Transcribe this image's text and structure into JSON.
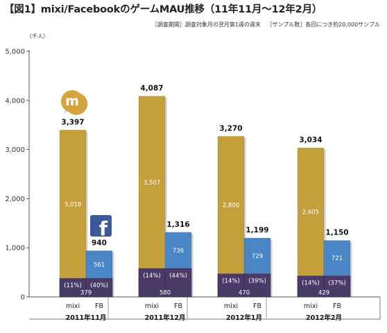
{
  "title": "【図1】mixi/FacebookのゲームMAU推移（11年11月～12年2月）",
  "survey_period": "［調査期間］調査対象月の翌月第1週の週末",
  "sample_size": "［サンプル数］各回につき約20,000サンプル",
  "unit_label": "（千人）",
  "colors": {
    "mixi_top": "#c4a03c",
    "fb_top": "#4a86c5",
    "base": "#4a3a68",
    "mixi_logo": "#d5a43e",
    "fb_logo": "#3b5998"
  },
  "icons": [
    "mixi-logo-icon",
    "facebook-logo-icon"
  ],
  "chart_data": {
    "type": "bar",
    "stacked": true,
    "title": "mixi/FacebookのゲームMAU推移（11年11月～12年2月）",
    "ylabel": "（千人）",
    "ylim": [
      0,
      5000
    ],
    "yticks": [
      "0",
      "1,000",
      "2,000",
      "3,000",
      "4,000",
      "5,000"
    ],
    "grid": false,
    "periods": [
      "2011年11月",
      "2011年12月",
      "2012年1月",
      "2012年2月"
    ],
    "platforms": [
      "mixi",
      "FB"
    ],
    "groups": [
      {
        "period": "2011年11月",
        "bars": [
          {
            "platform": "mixi",
            "base": 379,
            "top": 3018,
            "total": 3397,
            "total_label": "3,397",
            "base_label": "379",
            "top_label": "3,018",
            "share": "(11%)"
          },
          {
            "platform": "FB",
            "base": 379,
            "top": 561,
            "total": 940,
            "total_label": "940",
            "base_label": "",
            "top_label": "561",
            "share": "(40%)"
          }
        ]
      },
      {
        "period": "2011年12月",
        "bars": [
          {
            "platform": "mixi",
            "base": 580,
            "top": 3507,
            "total": 4087,
            "total_label": "4,087",
            "base_label": "580",
            "top_label": "3,507",
            "share": "(14%)"
          },
          {
            "platform": "FB",
            "base": 580,
            "top": 736,
            "total": 1316,
            "total_label": "1,316",
            "base_label": "",
            "top_label": "736",
            "share": "(44%)"
          }
        ]
      },
      {
        "period": "2012年1月",
        "bars": [
          {
            "platform": "mixi",
            "base": 470,
            "top": 2800,
            "total": 3270,
            "total_label": "3,270",
            "base_label": "470",
            "top_label": "2,800",
            "share": "(14%)"
          },
          {
            "platform": "FB",
            "base": 470,
            "top": 729,
            "total": 1199,
            "total_label": "1,199",
            "base_label": "",
            "top_label": "729",
            "share": "(39%)"
          }
        ]
      },
      {
        "period": "2012年2月",
        "bars": [
          {
            "platform": "mixi",
            "base": 429,
            "top": 2605,
            "total": 3034,
            "total_label": "3,034",
            "base_label": "429",
            "top_label": "2,605",
            "share": "(14%)"
          },
          {
            "platform": "FB",
            "base": 429,
            "top": 721,
            "total": 1150,
            "total_label": "1,150",
            "base_label": "",
            "top_label": "721",
            "share": "(37%)"
          }
        ]
      }
    ]
  }
}
